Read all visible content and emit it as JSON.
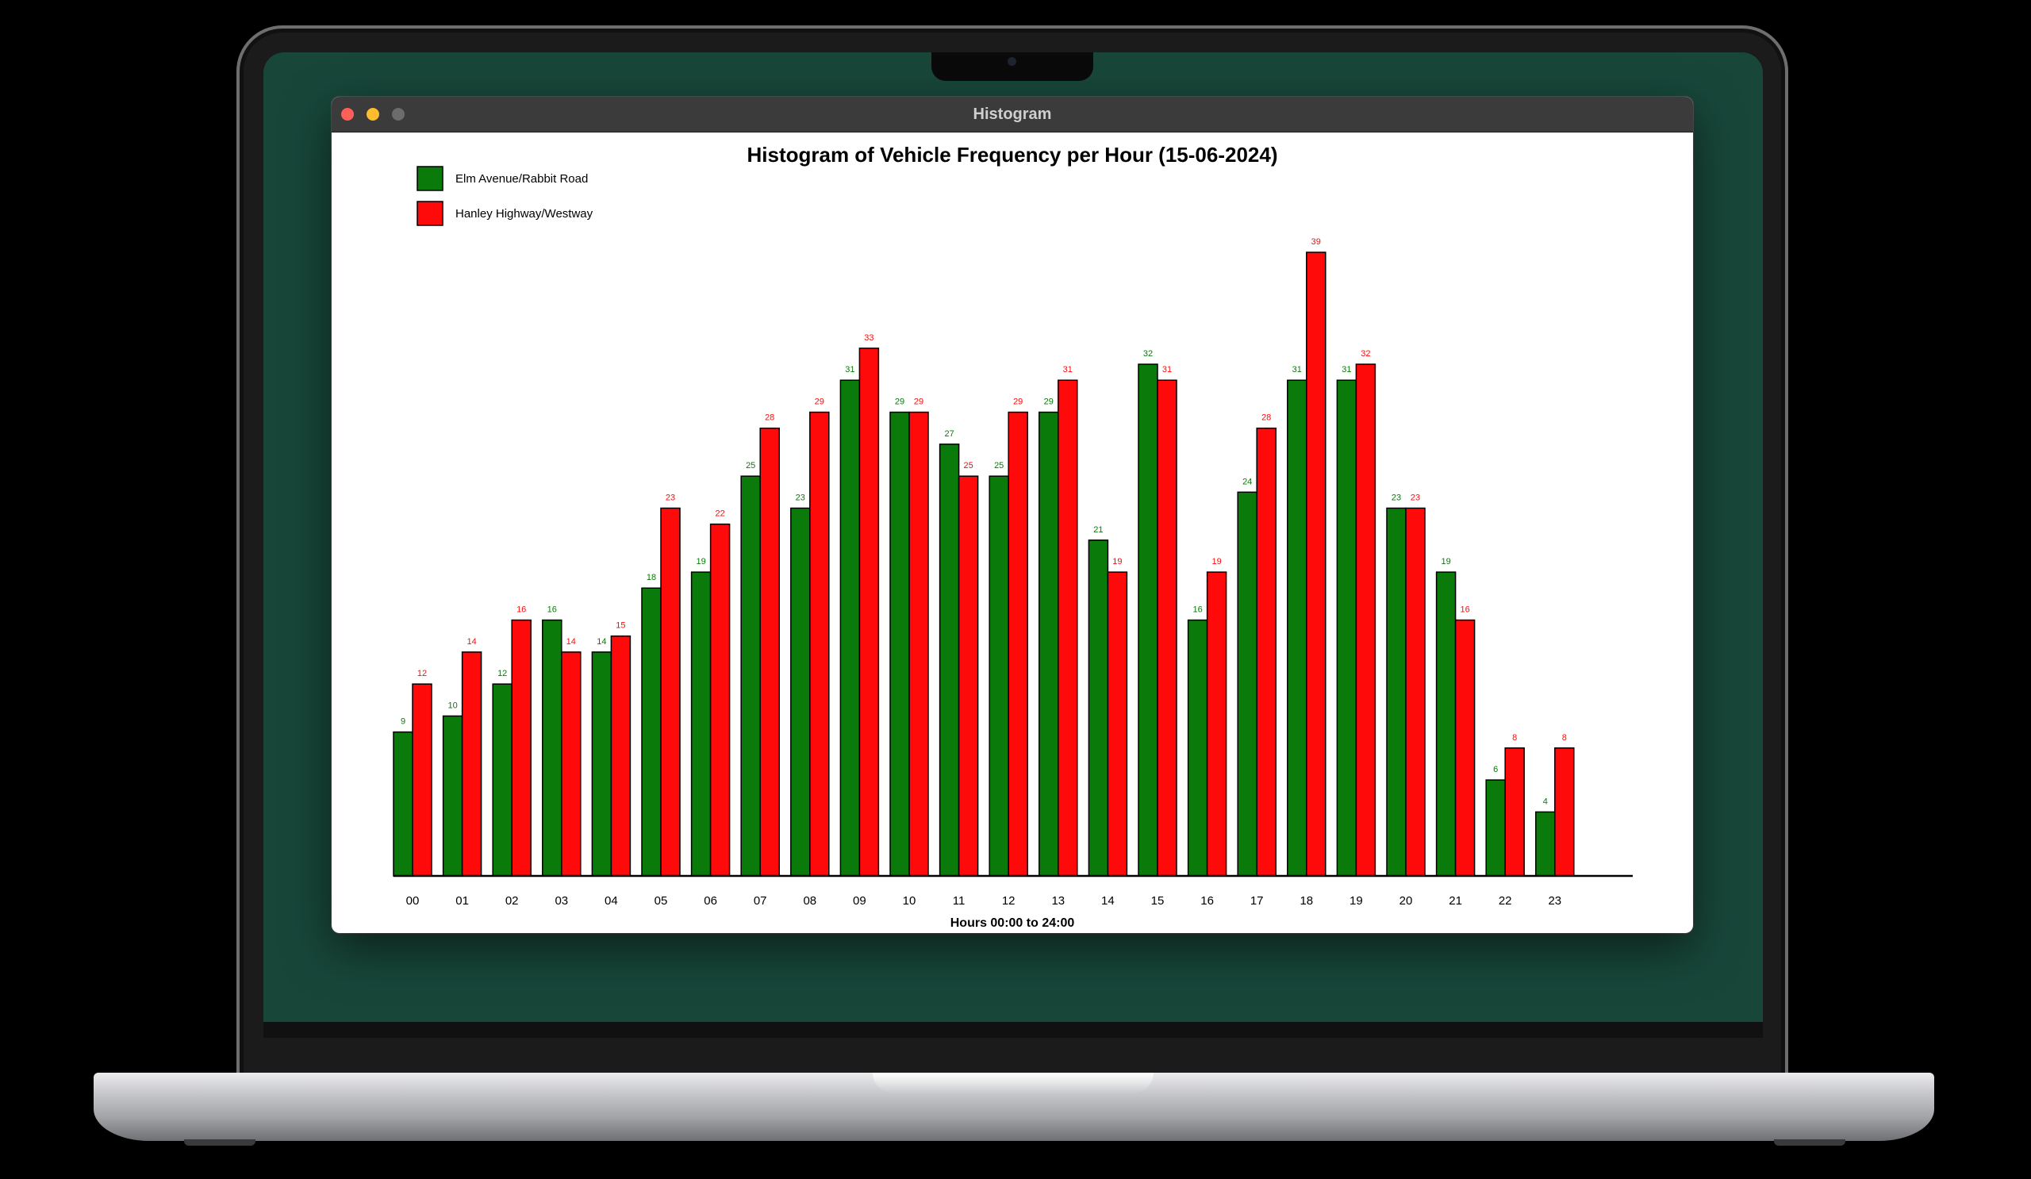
{
  "window": {
    "title": "Histogram"
  },
  "colors": {
    "series1": "#0a7a0a",
    "series2": "#ff0a0a",
    "desktop": "#18473a"
  },
  "chart_data": {
    "type": "bar",
    "title": "Histogram of Vehicle Frequency per Hour (15-06-2024)",
    "xlabel": "Hours 00:00 to 24:00",
    "ylabel": "",
    "ylim": [
      0,
      39
    ],
    "grid": false,
    "legend": "top-left",
    "categories": [
      "00",
      "01",
      "02",
      "03",
      "04",
      "05",
      "06",
      "07",
      "08",
      "09",
      "10",
      "11",
      "12",
      "13",
      "14",
      "15",
      "16",
      "17",
      "18",
      "19",
      "20",
      "21",
      "22",
      "23"
    ],
    "series": [
      {
        "name": "Elm Avenue/Rabbit Road",
        "color": "#0a7a0a",
        "values": [
          9,
          10,
          12,
          16,
          14,
          18,
          19,
          25,
          23,
          31,
          29,
          27,
          25,
          29,
          21,
          32,
          16,
          24,
          31,
          31,
          23,
          19,
          6,
          4
        ]
      },
      {
        "name": "Hanley Highway/Westway",
        "color": "#ff0a0a",
        "values": [
          12,
          14,
          16,
          14,
          15,
          23,
          22,
          28,
          29,
          33,
          29,
          25,
          29,
          31,
          19,
          31,
          19,
          28,
          39,
          32,
          23,
          16,
          8,
          8
        ]
      }
    ]
  }
}
